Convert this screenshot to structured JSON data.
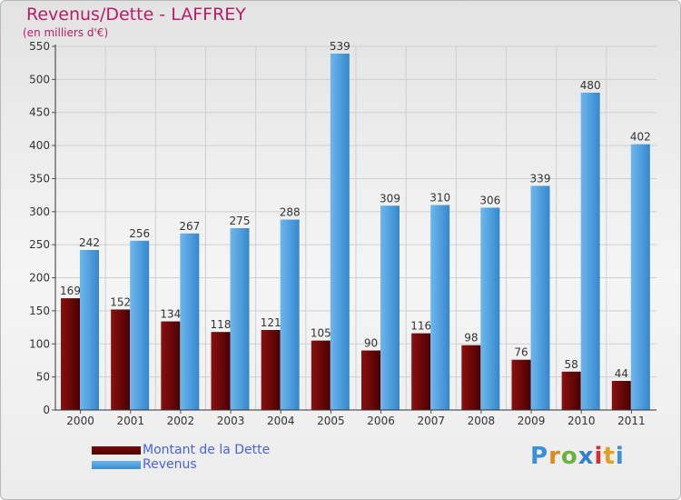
{
  "chart_data": {
    "type": "bar",
    "title": "Revenus/Dette - LAFFREY",
    "subtitle": "(en milliers d'€)",
    "xlabel": "",
    "ylabel": "",
    "ylim": [
      0,
      550
    ],
    "yticks": [
      0,
      50,
      100,
      150,
      200,
      250,
      300,
      350,
      400,
      450,
      500,
      550
    ],
    "grid": true,
    "categories": [
      "2000",
      "2001",
      "2002",
      "2003",
      "2004",
      "2005",
      "2006",
      "2007",
      "2008",
      "2009",
      "2010",
      "2011"
    ],
    "series": [
      {
        "name": "Montant de la Dette",
        "color": "#6e0808",
        "values": [
          169,
          152,
          134,
          118,
          121,
          105,
          90,
          116,
          98,
          76,
          58,
          44
        ]
      },
      {
        "name": "Revenus",
        "color": "#4a9fe0",
        "values": [
          242,
          256,
          267,
          275,
          288,
          539,
          309,
          310,
          306,
          339,
          480,
          402
        ]
      }
    ],
    "legend_position": "bottom-left"
  },
  "logo": {
    "letters": [
      "P",
      "r",
      "o",
      "x",
      "i",
      "t",
      "i"
    ]
  }
}
